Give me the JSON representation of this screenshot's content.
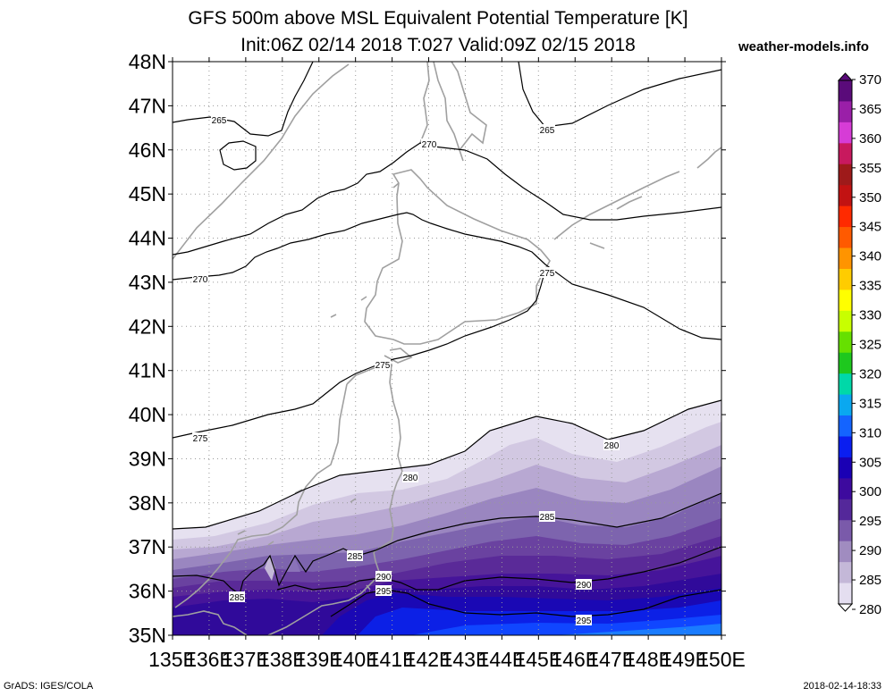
{
  "title_line1": "GFS 500m above MSL Equivalent Potential Temperature [K]",
  "title_line2": "Init:06Z 02/14 2018 T:027 Valid:09Z 02/15 2018",
  "site": "weather-models.info",
  "footer_left": "GrADS: IGES/COLA",
  "footer_right": "2018-02-14-18:33",
  "lat_labels": [
    "48N",
    "47N",
    "46N",
    "45N",
    "44N",
    "43N",
    "42N",
    "41N",
    "40N",
    "39N",
    "38N",
    "37N",
    "36N",
    "35N"
  ],
  "lon_labels": [
    "135E",
    "136E",
    "137E",
    "138E",
    "139E",
    "140E",
    "141E",
    "142E",
    "143E",
    "144E",
    "145E",
    "146E",
    "147E",
    "148E",
    "149E",
    "150E"
  ],
  "colorbar": {
    "labels": [
      "370",
      "365",
      "360",
      "355",
      "350",
      "345",
      "340",
      "335",
      "330",
      "325",
      "320",
      "315",
      "310",
      "305",
      "300",
      "295",
      "290",
      "285",
      "280"
    ],
    "colors": [
      "#5a0b7a",
      "#9a1fa8",
      "#d63cd6",
      "#c8195e",
      "#9e1a1a",
      "#c21212",
      "#ff2a00",
      "#ff5a00",
      "#ff9400",
      "#ffcc00",
      "#ffff00",
      "#c8ff00",
      "#66e000",
      "#1ec81e",
      "#00d8a8",
      "#0aa8f0",
      "#1464ff",
      "#0a1ef0",
      "#1a00b4",
      "#3d0a9e",
      "#54289a",
      "#7a5aaa",
      "#a08cc0",
      "#c4b8d8",
      "#e4def0"
    ]
  },
  "contour_labels": [
    "265",
    "265",
    "270",
    "270",
    "275",
    "275",
    "275",
    "280",
    "280",
    "285",
    "285",
    "285",
    "290",
    "290",
    "295",
    "295"
  ]
}
